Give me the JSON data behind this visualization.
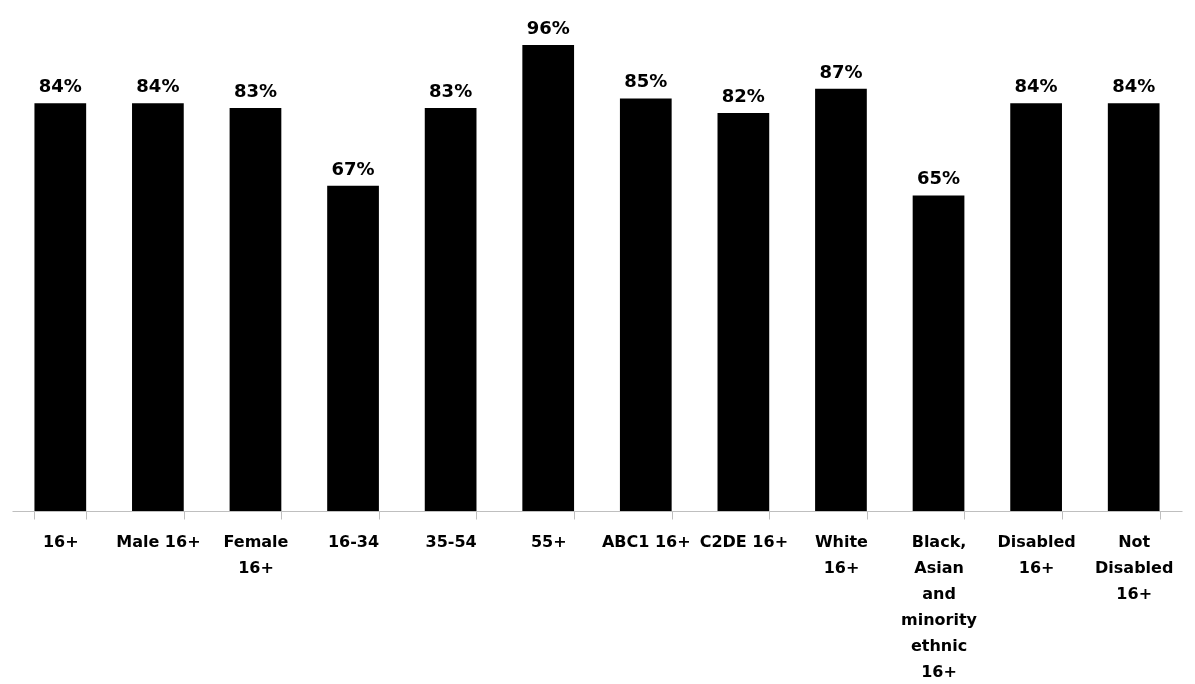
{
  "chart_data": {
    "type": "bar",
    "categories": [
      "16+",
      "Male 16+",
      "Female 16+",
      "16-34",
      "35-54",
      "55+",
      "ABC1 16+",
      "C2DE 16+",
      "White 16+",
      "Black, Asian and minority ethnic 16+",
      "Disabled 16+",
      "Not Disabled 16+"
    ],
    "values": [
      84,
      84,
      83,
      67,
      83,
      96,
      85,
      82,
      87,
      65,
      84,
      84
    ],
    "value_labels": [
      "84%",
      "84%",
      "83%",
      "67%",
      "83%",
      "96%",
      "85%",
      "82%",
      "87%",
      "65%",
      "84%",
      "84%"
    ],
    "color": "#000000",
    "grid": false
  }
}
